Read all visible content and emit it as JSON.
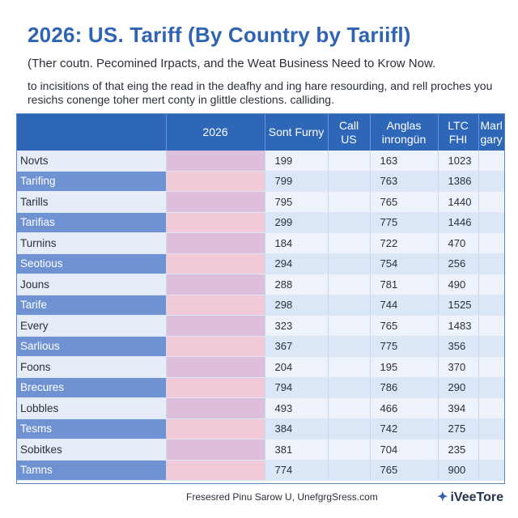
{
  "header": {
    "title": "2026: US. Tariff (By Country by Tariifl)",
    "subtitle": "(Ther coutn. Pecomined Irpacts, and the Weat Business Need to Krow Now.",
    "intro": "to incisitions of that eing the read in the deafhy and ing hare resourding, and rell proches you resichs conenge toher mert conty in glittle clestions. calliding."
  },
  "table": {
    "columns": [
      "",
      "2026",
      "Sont Furny",
      "Call US",
      "Anglas inrongün",
      "LTC FHI",
      "Marl gary"
    ],
    "rows": [
      {
        "name": "Novts",
        "v1": "",
        "v2": "199",
        "v3": "",
        "v4": "163",
        "v5": "1023",
        "v6": ""
      },
      {
        "name": "Tarifing",
        "v1": "",
        "v2": "799",
        "v3": "",
        "v4": "763",
        "v5": "1386",
        "v6": ""
      },
      {
        "name": "Tarills",
        "v1": "",
        "v2": "795",
        "v3": "",
        "v4": "765",
        "v5": "1440",
        "v6": ""
      },
      {
        "name": "Tarifias",
        "v1": "",
        "v2": "299",
        "v3": "",
        "v4": "775",
        "v5": "1446",
        "v6": ""
      },
      {
        "name": "Turnins",
        "v1": "",
        "v2": "184",
        "v3": "",
        "v4": "722",
        "v5": "470",
        "v6": ""
      },
      {
        "name": "Seotious",
        "v1": "",
        "v2": "294",
        "v3": "",
        "v4": "754",
        "v5": "256",
        "v6": ""
      },
      {
        "name": "Jouns",
        "v1": "",
        "v2": "288",
        "v3": "",
        "v4": "781",
        "v5": "490",
        "v6": ""
      },
      {
        "name": "Tarife",
        "v1": "",
        "v2": "298",
        "v3": "",
        "v4": "744",
        "v5": "1525",
        "v6": ""
      },
      {
        "name": "Every",
        "v1": "",
        "v2": "323",
        "v3": "",
        "v4": "765",
        "v5": "1483",
        "v6": ""
      },
      {
        "name": "Sarlious",
        "v1": "",
        "v2": "367",
        "v3": "",
        "v4": "775",
        "v5": "356",
        "v6": ""
      },
      {
        "name": "Foons",
        "v1": "",
        "v2": "204",
        "v3": "",
        "v4": "195",
        "v5": "370",
        "v6": ""
      },
      {
        "name": "Brecures",
        "v1": "",
        "v2": "794",
        "v3": "",
        "v4": "786",
        "v5": "290",
        "v6": ""
      },
      {
        "name": "Lobbles",
        "v1": "",
        "v2": "493",
        "v3": "",
        "v4": "466",
        "v5": "394",
        "v6": ""
      },
      {
        "name": "Tesms",
        "v1": "",
        "v2": "384",
        "v3": "",
        "v4": "742",
        "v5": "275",
        "v6": ""
      },
      {
        "name": "Sobitkes",
        "v1": "",
        "v2": "381",
        "v3": "",
        "v4": "704",
        "v5": "235",
        "v6": ""
      },
      {
        "name": "Tamns",
        "v1": "",
        "v2": "774",
        "v3": "",
        "v4": "765",
        "v5": "900",
        "v6": ""
      }
    ]
  },
  "footer": {
    "credit": "Fresesred Pinu Sarow U, UnefgrgSress.com",
    "brand": "iVeeTore",
    "brand_icon": "compass-icon"
  }
}
